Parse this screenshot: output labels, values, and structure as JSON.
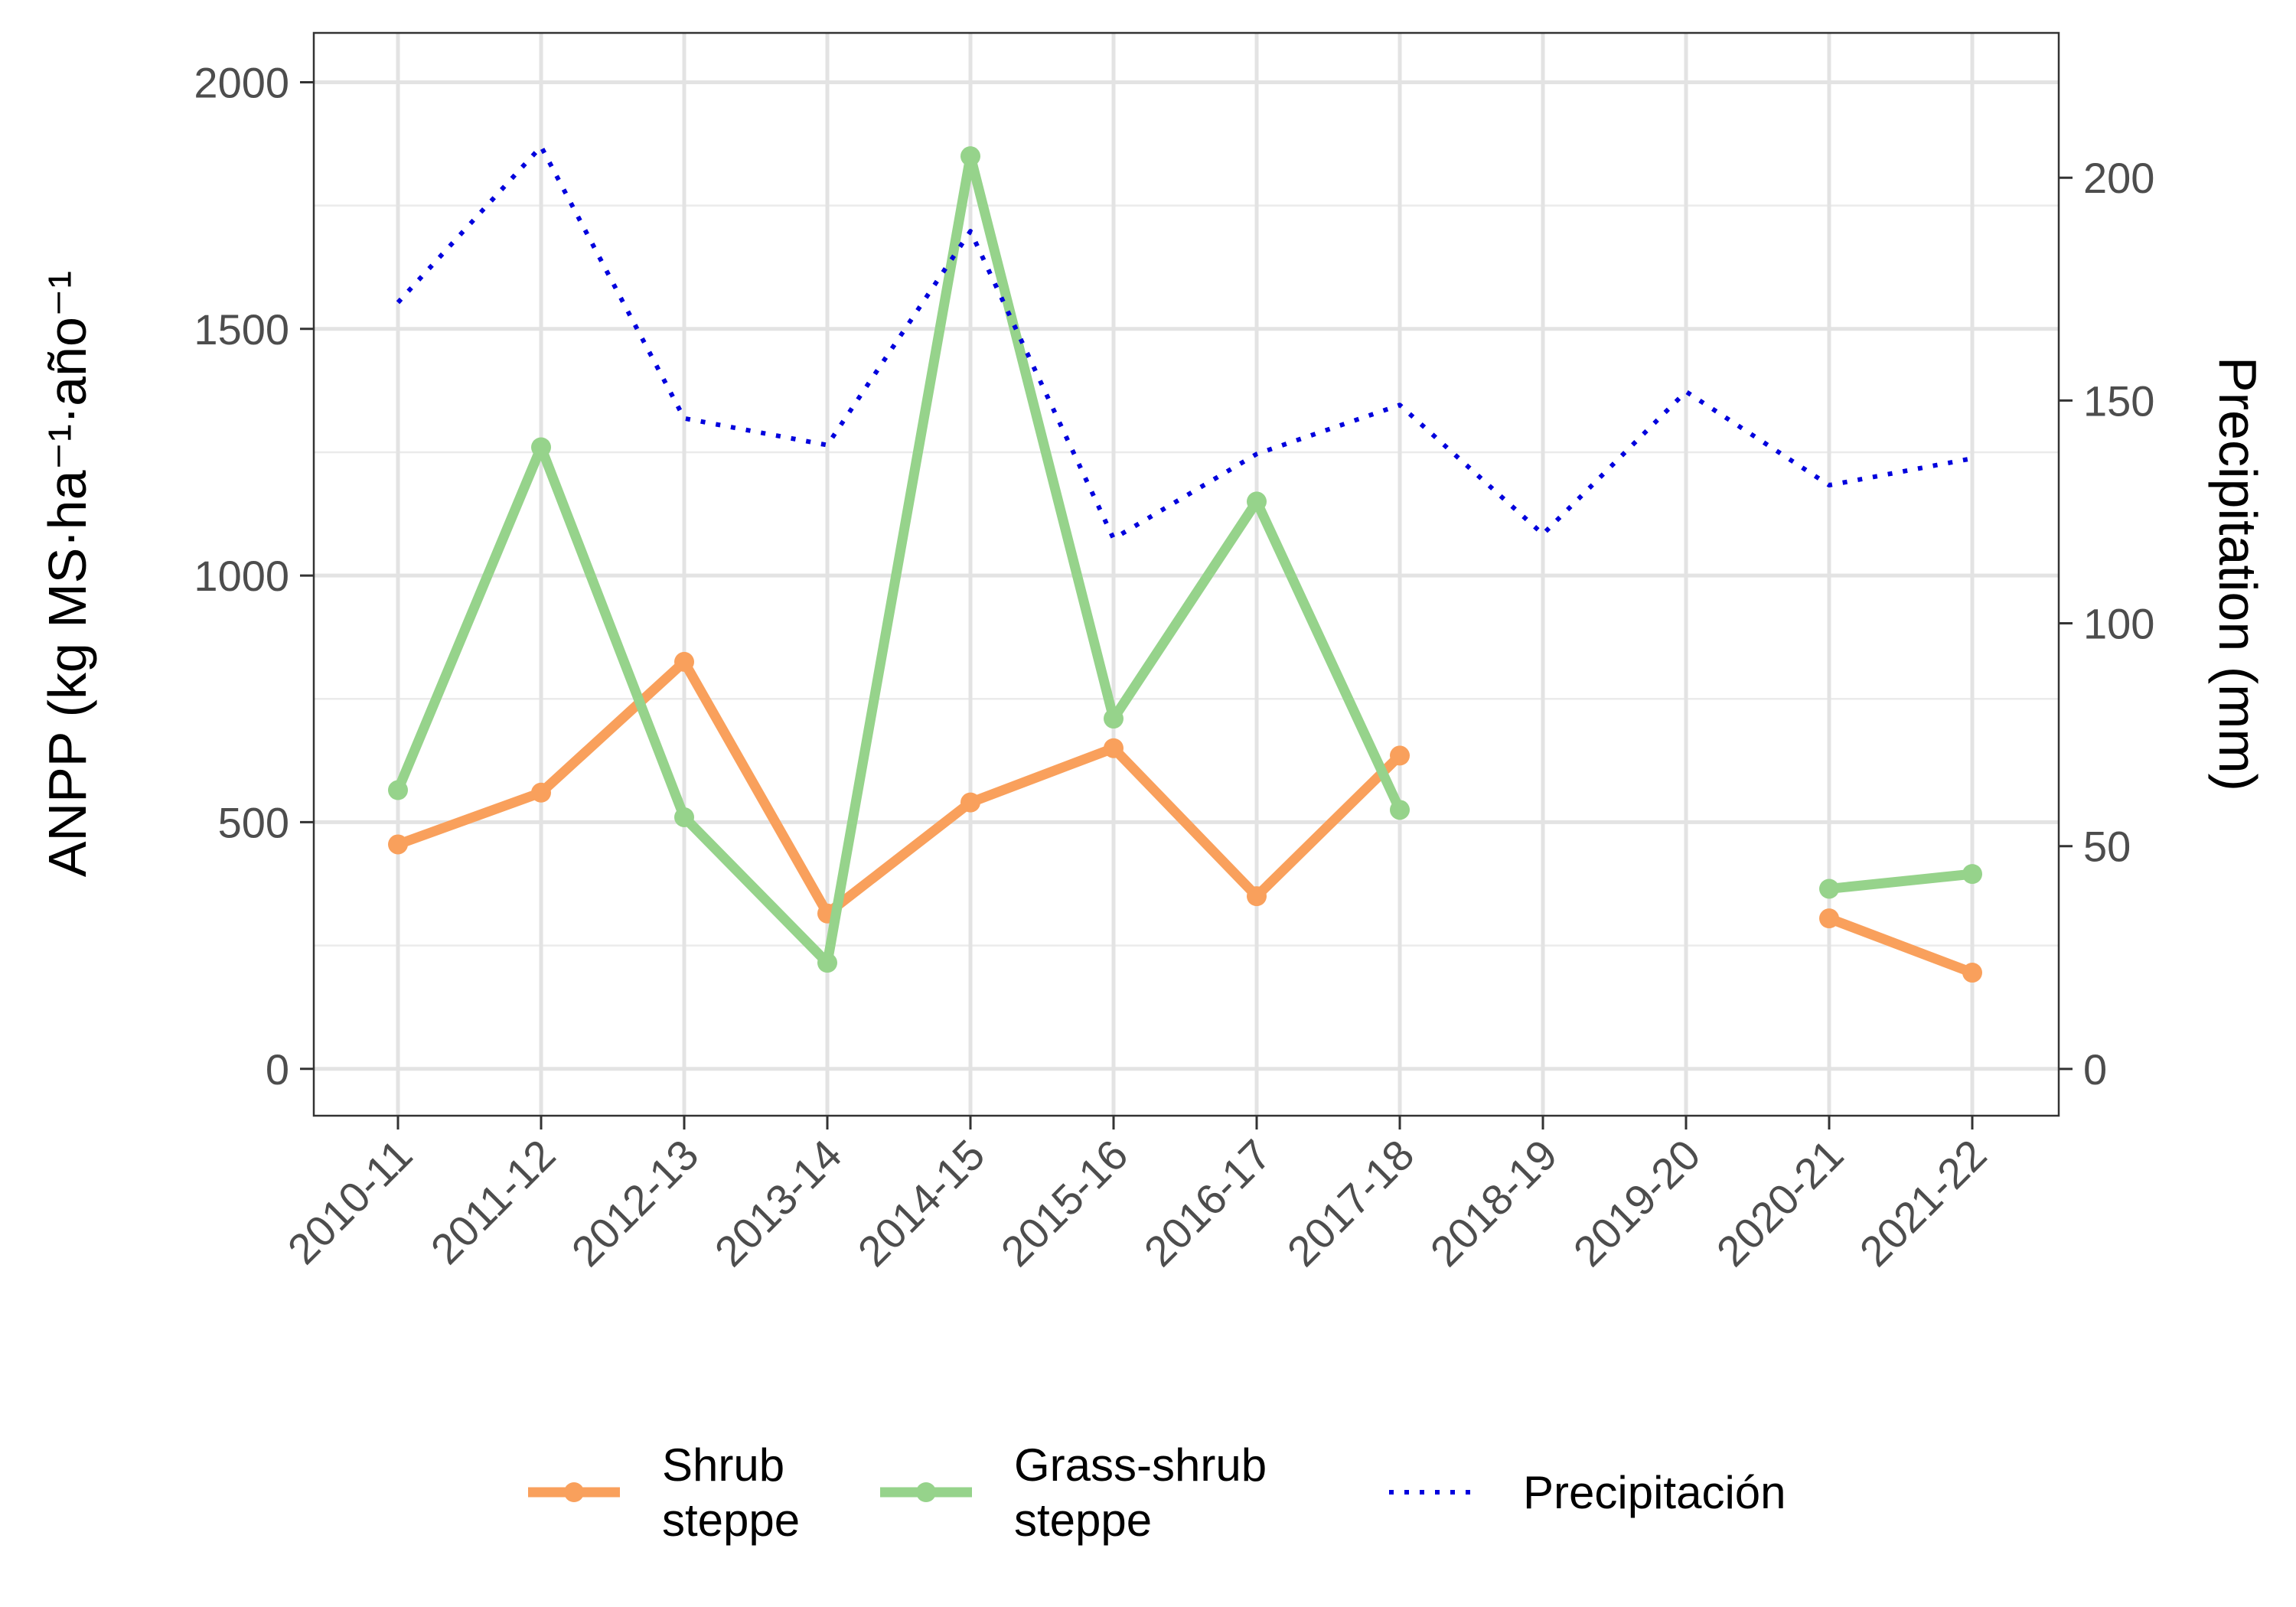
{
  "chart_data": {
    "type": "line",
    "categories": [
      "2010-11",
      "2011-12",
      "2012-13",
      "2013-14",
      "2014-15",
      "2015-16",
      "2016-17",
      "2017-18",
      "2018-19",
      "2019-20",
      "2020-21",
      "2021-22"
    ],
    "y_left": {
      "label": "ANPP (kg MS·ha⁻¹·año⁻¹",
      "ylim": [
        -95,
        2100
      ],
      "ticks": [
        0,
        500,
        1000,
        1500,
        2000
      ],
      "tick_labels": [
        "0",
        "500",
        "1000",
        "1500",
        "2000"
      ]
    },
    "y_right": {
      "label": "Precipitation (mm)",
      "ylim": [
        -10.5,
        232.5
      ],
      "ticks": [
        0,
        50,
        100,
        150,
        200
      ],
      "tick_labels": [
        "0",
        "50",
        "100",
        "150",
        "200"
      ]
    },
    "series": [
      {
        "name": "Shrub\nsteppe",
        "axis": "left",
        "style": "line-points",
        "color": "#f9a05c",
        "values": [
          455,
          560,
          825,
          315,
          540,
          650,
          350,
          635,
          null,
          null,
          305,
          195
        ]
      },
      {
        "name": "Grass-shrub\nsteppe",
        "axis": "left",
        "style": "line-points",
        "color": "#96d38b",
        "values": [
          565,
          1260,
          510,
          215,
          1850,
          710,
          1150,
          525,
          null,
          null,
          365,
          395
        ]
      },
      {
        "name": "Precipitación",
        "axis": "right",
        "style": "dotted",
        "color": "#0000dd",
        "values": [
          172,
          207,
          146,
          140,
          188,
          119,
          138,
          149,
          120,
          152,
          131,
          137
        ]
      }
    ],
    "grid": true,
    "legend": {
      "position": "bottom"
    }
  }
}
